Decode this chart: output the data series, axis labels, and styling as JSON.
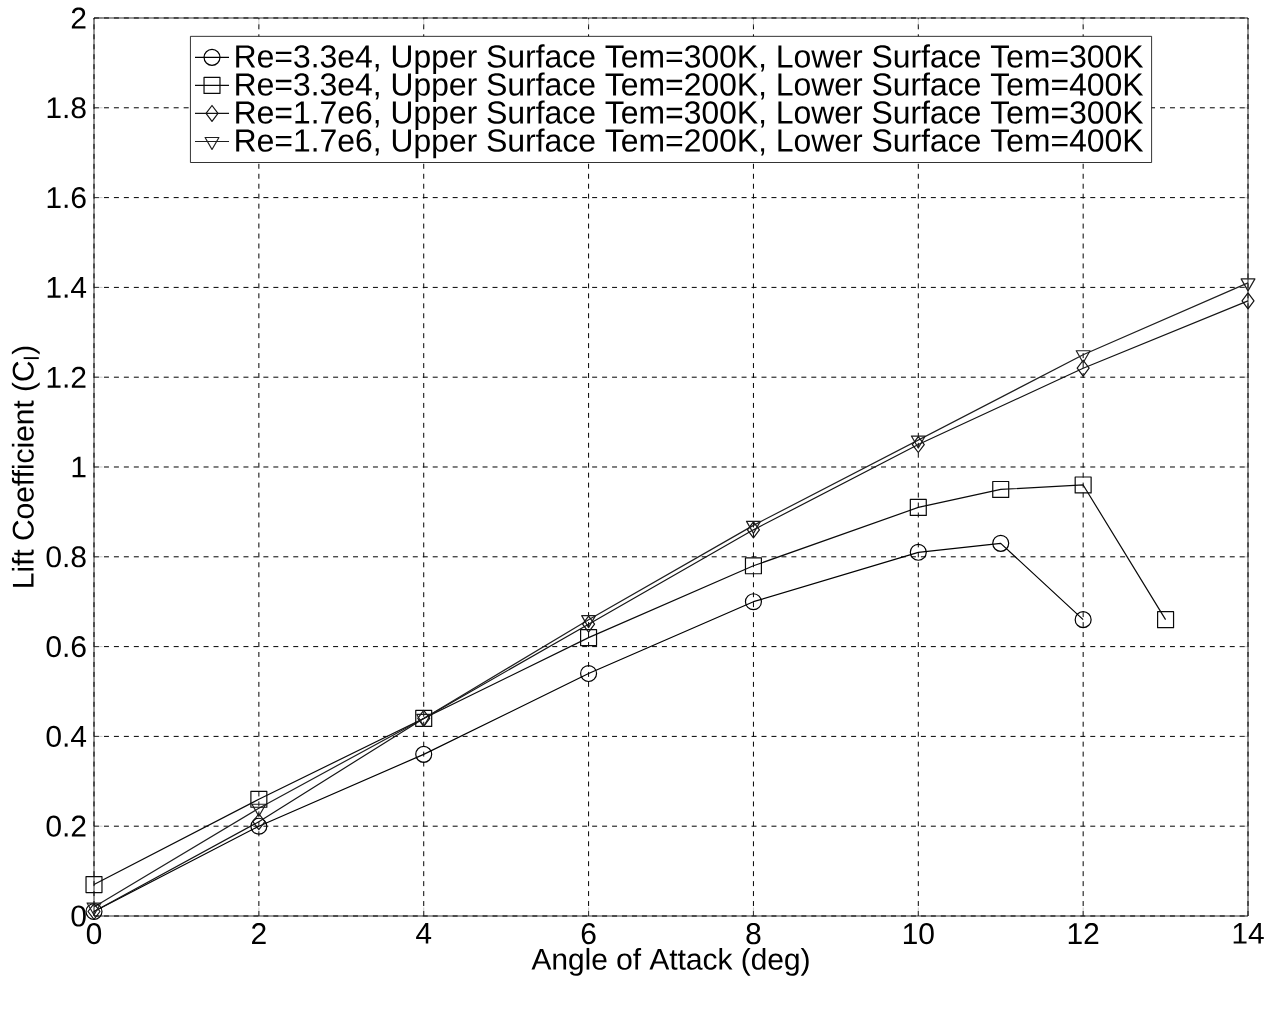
{
  "chart_data": {
    "type": "line",
    "xlabel": "Angle of Attack (deg)",
    "ylabel": "Lift Coefficient (C$_{l}$)",
    "xlim": [
      0,
      14
    ],
    "ylim": [
      0,
      2
    ],
    "xticks": [
      0,
      2,
      4,
      6,
      8,
      10,
      12,
      14
    ],
    "yticks": [
      0,
      0.2,
      0.4,
      0.6,
      0.8,
      1,
      1.2,
      1.4,
      1.6,
      1.8,
      2
    ],
    "grid": true,
    "legend": "top",
    "line_style": "solid",
    "series": [
      {
        "name": "Re=3.3e4, Upper Surface Tem=300K, Lower Surface Tem=300K",
        "color": "#000000",
        "marker": "circle",
        "x": [
          0,
          2,
          4,
          6,
          8,
          10,
          11,
          12
        ],
        "values": [
          0.01,
          0.2,
          0.36,
          0.54,
          0.7,
          0.81,
          0.83,
          0.66
        ]
      },
      {
        "name": "Re=3.3e4, Upper Surface Tem=200K, Lower Surface Tem=400K",
        "color": "#0a0a0a",
        "marker": "square",
        "x": [
          0,
          2,
          4,
          6,
          8,
          10,
          11,
          12,
          13
        ],
        "values": [
          0.07,
          0.26,
          0.44,
          0.62,
          0.78,
          0.91,
          0.95,
          0.96,
          0.66
        ]
      },
      {
        "name": "Re=1.7e6, Upper Surface Tem=300K, Lower Surface Tem=300K",
        "color": "#141414",
        "marker": "diamond",
        "x": [
          0,
          2,
          4,
          6,
          8,
          10,
          12,
          14
        ],
        "values": [
          0.01,
          0.21,
          0.44,
          0.65,
          0.86,
          1.05,
          1.22,
          1.37
        ]
      },
      {
        "name": "Re=1.7e6, Upper Surface Tem=200K, Lower Surface Tem=400K",
        "color": "#1e1e1e",
        "marker": "triangle",
        "x": [
          0,
          2,
          4,
          6,
          8,
          10,
          12,
          14
        ],
        "values": [
          0.02,
          0.24,
          0.44,
          0.66,
          0.87,
          1.06,
          1.25,
          1.41
        ]
      }
    ]
  }
}
